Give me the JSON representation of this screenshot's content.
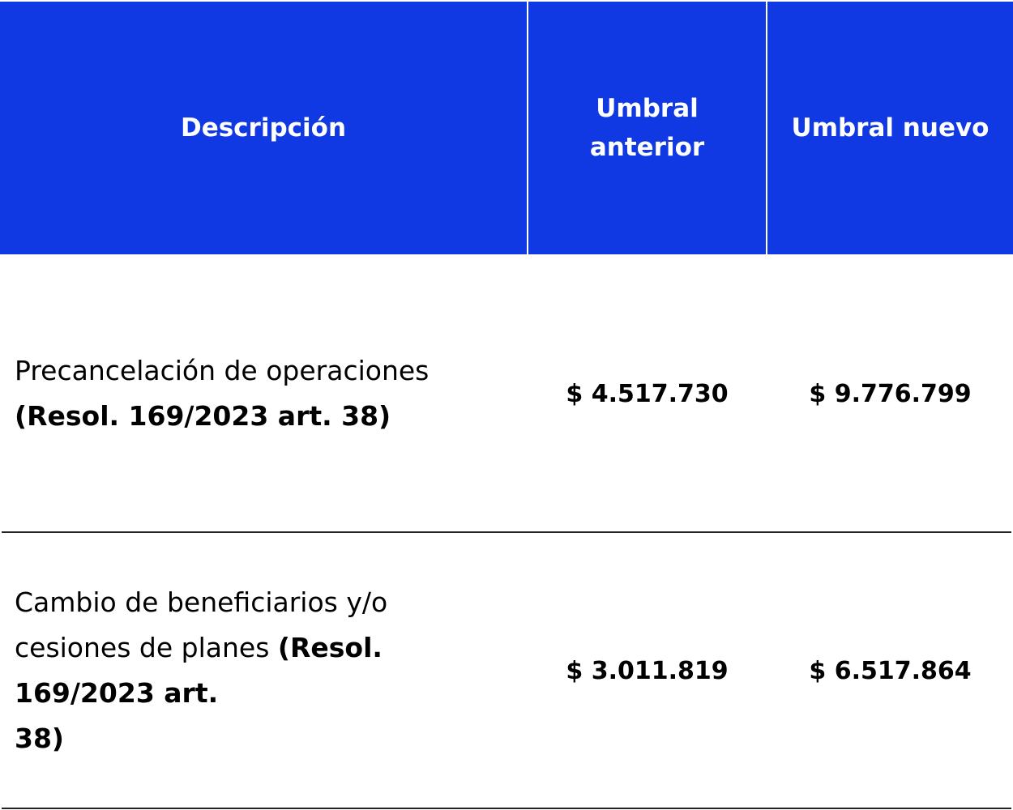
{
  "header": {
    "description": "Descripción",
    "previous": "Umbral anterior",
    "new": "Umbral nuevo"
  },
  "header_color": "#1038E3",
  "rows": [
    {
      "description_lines": [
        [
          "Precancelación de operaciones",
          ""
        ],
        [
          "",
          "(Resol. 169/2023 art. 38)"
        ]
      ],
      "previous": "$ 4.517.730",
      "new": "$ 9.776.799"
    },
    {
      "description_lines": [
        [
          "Cambio de beneficiarios y/o",
          ""
        ],
        [
          "cesiones de planes ",
          "(Resol."
        ],
        [
          "",
          "169/2023 art."
        ],
        [
          "",
          "38)"
        ]
      ],
      "previous": "$ 3.011.819",
      "new": "$ 6.517.864"
    }
  ]
}
